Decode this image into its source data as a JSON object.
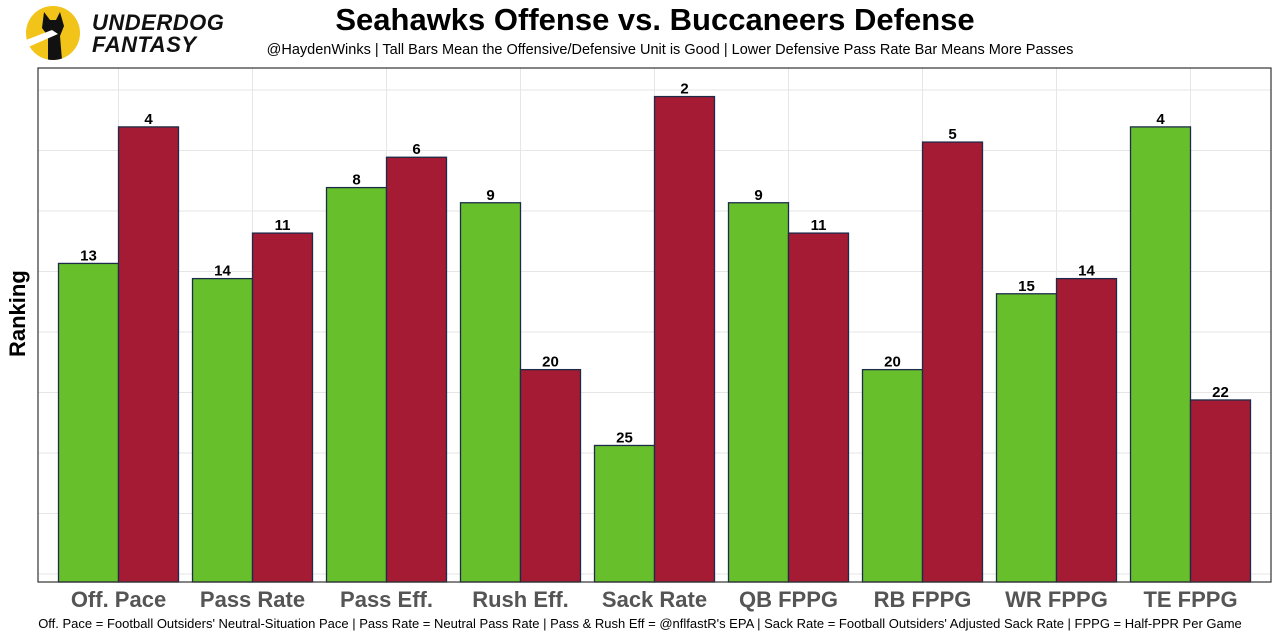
{
  "logo": {
    "line1": "UNDERDOG",
    "line2": "FANTASY",
    "color": "#f2c318",
    "icon": "dog-icon"
  },
  "chart_data": {
    "type": "bar",
    "title": "Seahawks Offense vs. Buccaneers Defense",
    "subtitle": "@HaydenWinks | Tall Bars Mean the Offensive/Defensive Unit is Good | Lower Defensive Pass Rate Bar Means More Passes",
    "ylabel": "Ranking",
    "xlabel": "",
    "footer": "Off. Pace = Football Outsiders' Neutral-Situation Pace | Pass Rate = Neutral Pass Rate | Pass & Rush Eff = @nflfastR's EPA | Sack Rate = Football Outsiders' Adjusted Sack Rate | FPPG = Half-PPR Per Game",
    "categories": [
      "Off. Pace",
      "Pass Rate",
      "Pass Eff.",
      "Rush Eff.",
      "Sack Rate",
      "QB FPPG",
      "RB FPPG",
      "WR FPPG",
      "TE FPPG"
    ],
    "series": [
      {
        "name": "Seahawks Offense",
        "color": "#67bf2b",
        "values": [
          13,
          14,
          8,
          9,
          25,
          9,
          20,
          15,
          4
        ]
      },
      {
        "name": "Buccaneers Defense",
        "color": "#a51b33",
        "values": [
          4,
          11,
          6,
          20,
          2,
          11,
          5,
          14,
          22
        ]
      }
    ],
    "rank_scale": {
      "best": 1,
      "worst": 33
    },
    "grid": true,
    "legend": "none"
  }
}
